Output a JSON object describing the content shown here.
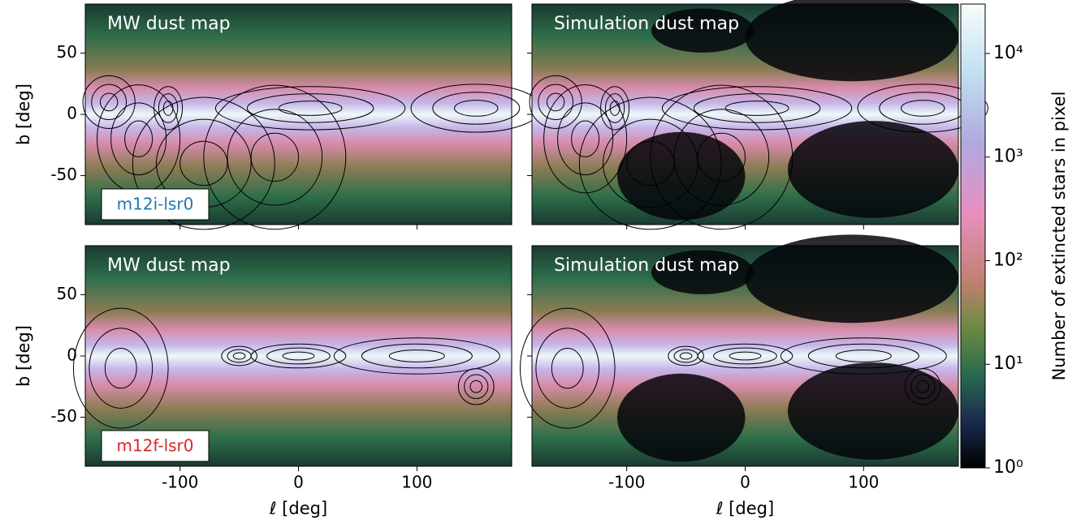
{
  "chart_data": [
    {
      "type": "image",
      "title": "MW dust map",
      "label": "m12i-lsr0",
      "label_color": "#1f77b4",
      "ylabel": "b [deg]",
      "xlim": [
        -180,
        180
      ],
      "ylim": [
        -90,
        90
      ],
      "xticks": [
        -100,
        0,
        100
      ],
      "yticks": [
        -50,
        0,
        50
      ]
    },
    {
      "type": "image",
      "title": "Simulation dust map",
      "xlim": [
        -180,
        180
      ],
      "ylim": [
        -90,
        90
      ],
      "xticks": [
        -100,
        0,
        100
      ],
      "yticks": [
        -50,
        0,
        50
      ]
    },
    {
      "type": "image",
      "title": "MW dust map",
      "label": "m12f-lsr0",
      "label_color": "#d62728",
      "ylabel": "b [deg]",
      "xlabel": "ℓ [deg]",
      "xlim": [
        -180,
        180
      ],
      "ylim": [
        -90,
        90
      ],
      "xticks": [
        -100,
        0,
        100
      ],
      "yticks": [
        -50,
        0,
        50
      ]
    },
    {
      "type": "image",
      "title": "Simulation dust map",
      "xlabel": "ℓ [deg]",
      "xlim": [
        -180,
        180
      ],
      "ylim": [
        -90,
        90
      ],
      "xticks": [
        -100,
        0,
        100
      ],
      "yticks": [
        -50,
        0,
        50
      ]
    },
    {
      "type": "colorbar",
      "ylabel": "Number of extincted stars in pixel",
      "log": true,
      "ylim": [
        1,
        30000
      ],
      "yticks": [
        {
          "value": 1,
          "label": "10⁰"
        },
        {
          "value": 10,
          "label": "10¹"
        },
        {
          "value": 100,
          "label": "10²"
        },
        {
          "value": 1000,
          "label": "10³"
        },
        {
          "value": 10000,
          "label": "10⁴"
        }
      ]
    }
  ]
}
